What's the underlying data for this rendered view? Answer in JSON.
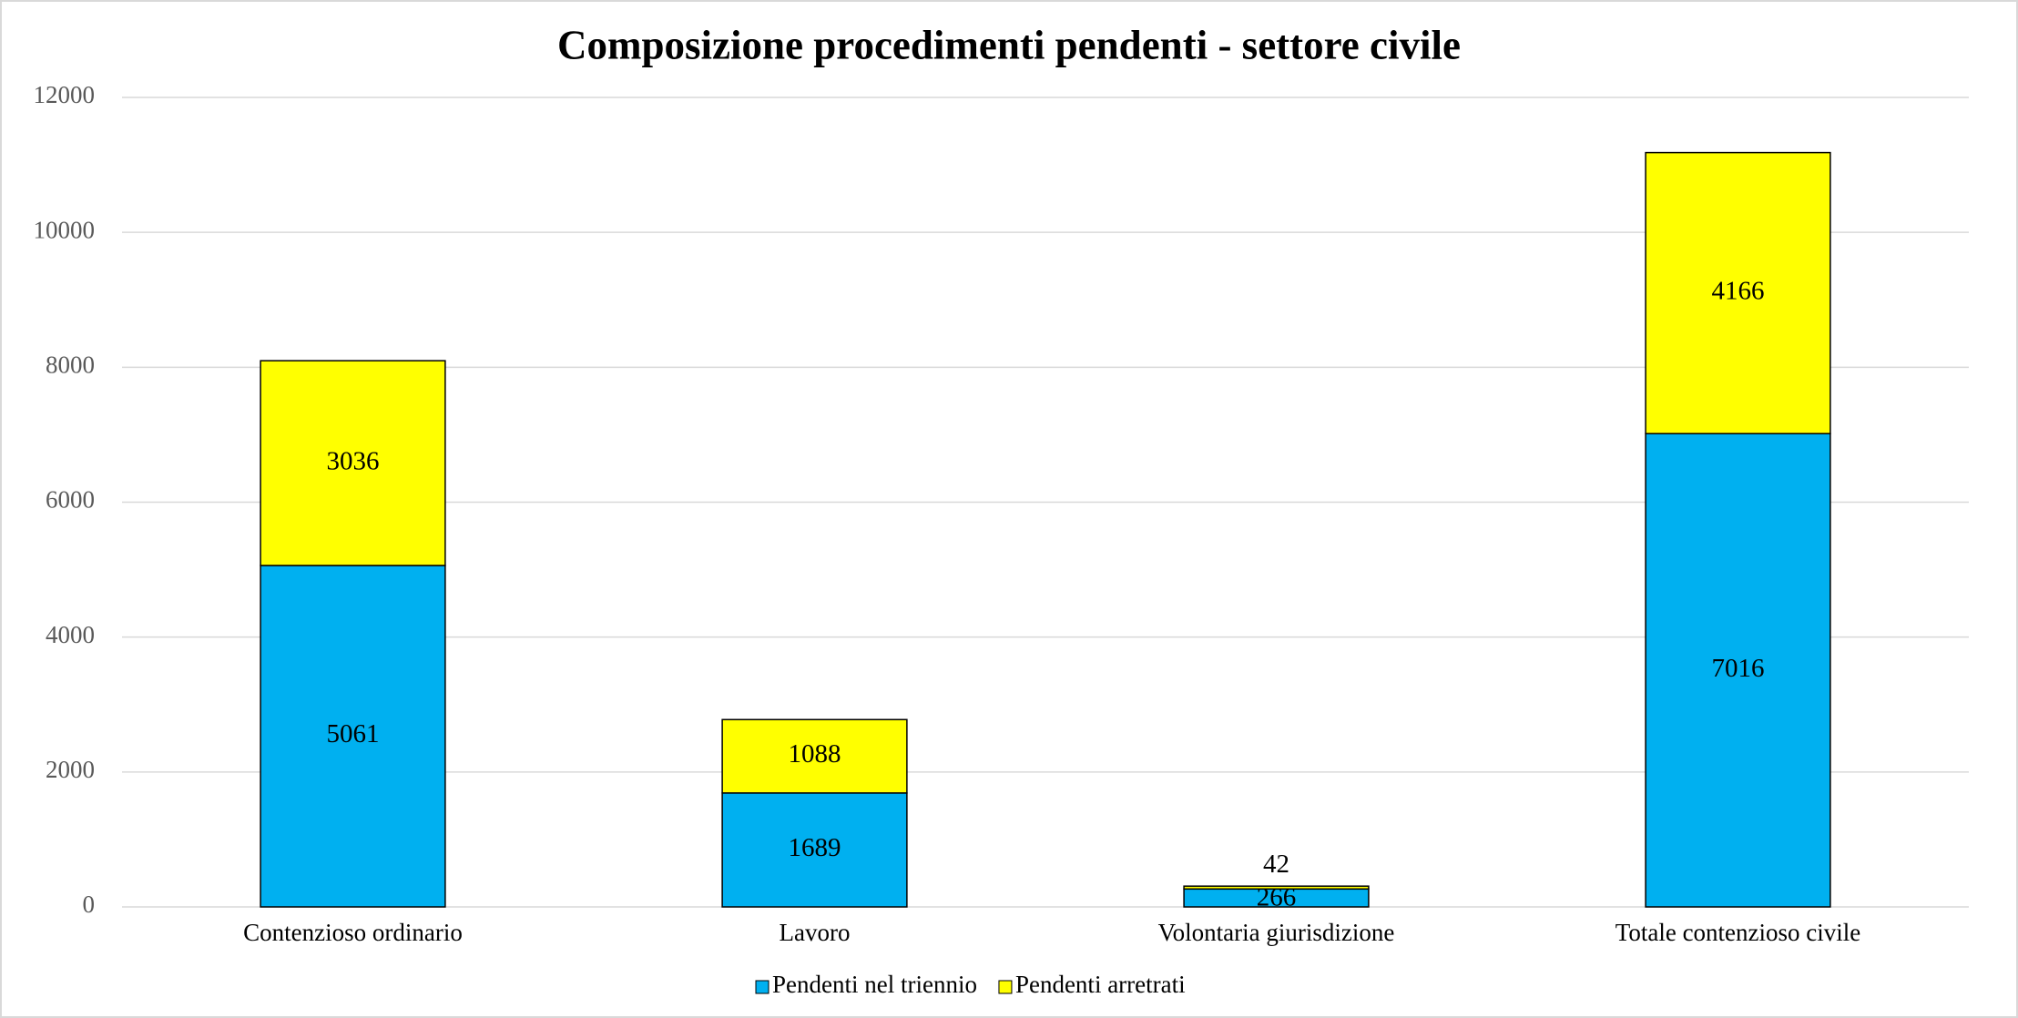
{
  "chart_data": {
    "type": "stacked_bar",
    "title": "Composizione procedimenti pendenti - settore civile",
    "categories": [
      "Contenzioso ordinario",
      "Lavoro",
      "Volontaria giurisdizione",
      "Totale contenzioso civile"
    ],
    "series": [
      {
        "name": "Pendenti nel triennio",
        "color": "#00b0f0",
        "values": [
          5061,
          1689,
          266,
          7016
        ]
      },
      {
        "name": "Pendenti arretrati",
        "color": "#ffff00",
        "values": [
          3036,
          1088,
          42,
          4166
        ]
      }
    ],
    "ylim": [
      0,
      12000
    ],
    "yticks": [
      0,
      2000,
      4000,
      6000,
      8000,
      10000,
      12000
    ],
    "grid": true,
    "legend": "bottom"
  }
}
